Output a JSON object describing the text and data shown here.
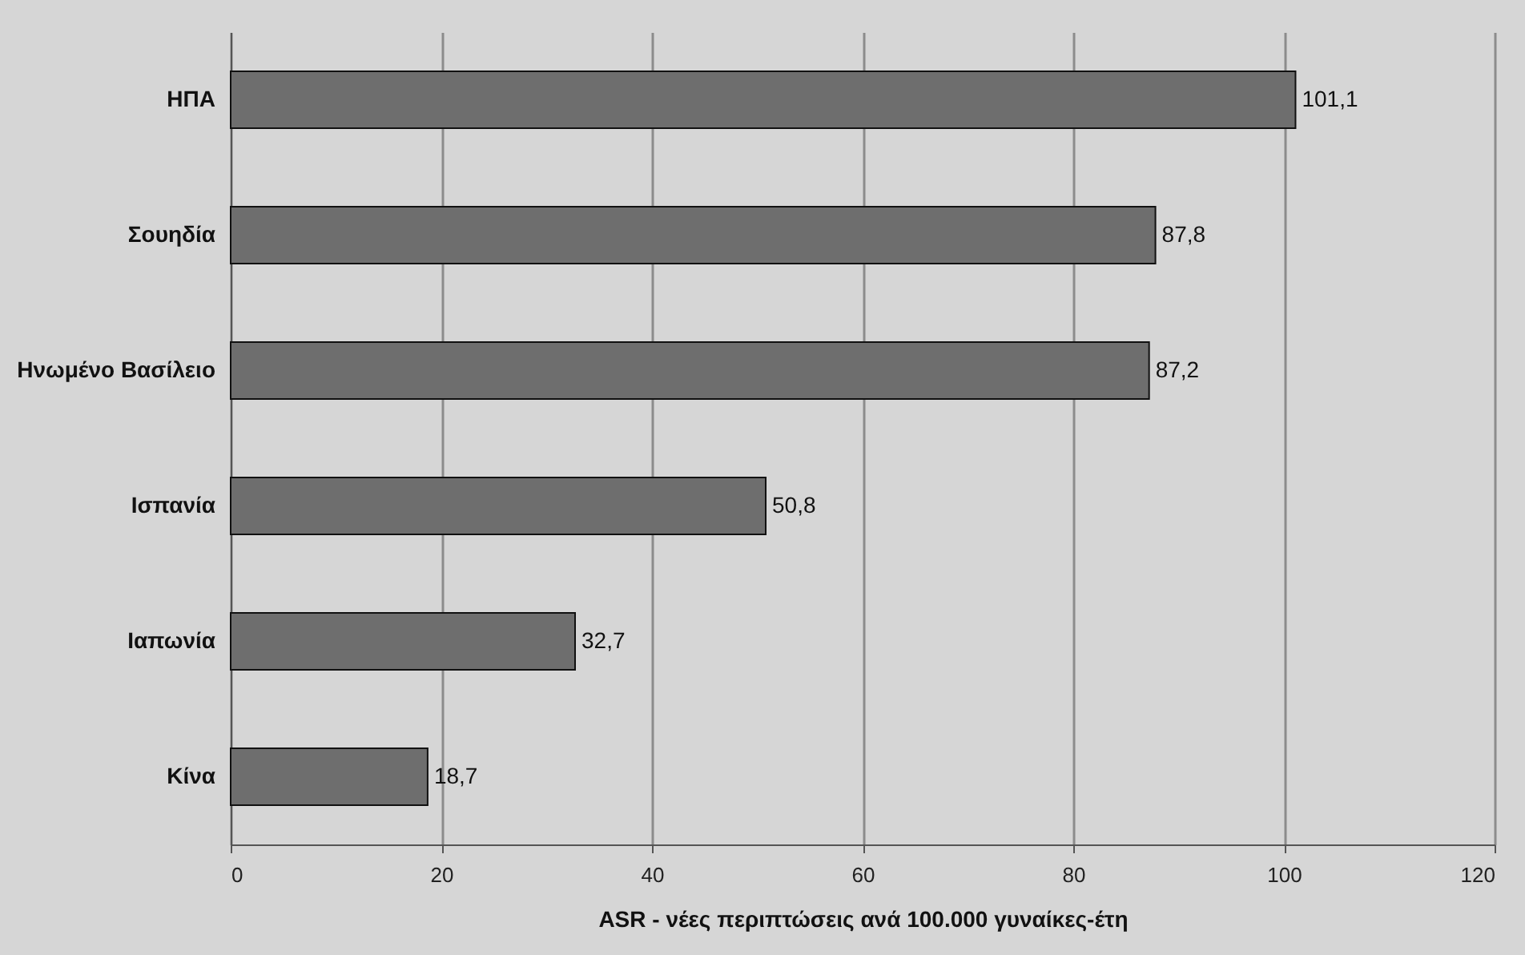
{
  "chart_data": {
    "type": "bar",
    "orientation": "horizontal",
    "categories": [
      "ΗΠΑ",
      "Σουηδία",
      "Ηνωμένο Βασίλειο",
      "Ισπανία",
      "Ιαπωνία",
      "Κίνα"
    ],
    "values": [
      101.1,
      87.8,
      87.2,
      50.8,
      32.7,
      18.7
    ],
    "value_labels": [
      "101,1",
      "87,8",
      "87,2",
      "50,8",
      "32,7",
      "18,7"
    ],
    "color": "#6e6e6e",
    "xlabel": "ASR - νέες περιπτώσεις ανά 100.000 γυναίκες-έτη",
    "xlim": [
      0,
      120
    ],
    "xticks": [
      0,
      20,
      40,
      60,
      80,
      100,
      120
    ],
    "grid": "x"
  }
}
